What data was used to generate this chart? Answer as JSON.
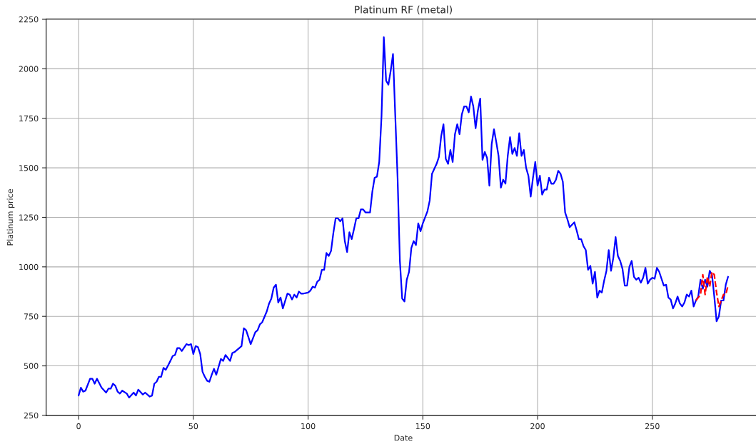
{
  "chart_data": {
    "type": "line",
    "title": "Platinum RF (metal)",
    "xlabel": "Date",
    "ylabel": "Platinum price",
    "xlim": [
      -14.15,
      297.15
    ],
    "xticks": [
      0,
      50,
      100,
      150,
      200,
      250
    ],
    "ylim": [
      249,
      2251
    ],
    "yticks": [
      250,
      500,
      750,
      1000,
      1250,
      1500,
      1750,
      2000,
      2250
    ],
    "grid": true,
    "marker": "none",
    "series": [
      {
        "color": "#0000ff",
        "line_style": "solid",
        "x": [
          0,
          1,
          2,
          3,
          5,
          6,
          7,
          8,
          10,
          12,
          13,
          14,
          15,
          16,
          17,
          18,
          19,
          21,
          22,
          24,
          25,
          26,
          28,
          29,
          31,
          32,
          33,
          34,
          35,
          36,
          37,
          38,
          40,
          41,
          42,
          43,
          44,
          45,
          47,
          48,
          49,
          50,
          51,
          52,
          53,
          54,
          55,
          56,
          57,
          58,
          59,
          60,
          62,
          63,
          64,
          66,
          67,
          68,
          69,
          71,
          72,
          73,
          75,
          77,
          78,
          79,
          80,
          82,
          83,
          84,
          85,
          86,
          87,
          88,
          89,
          91,
          92,
          93,
          94,
          95,
          96,
          97,
          98,
          100,
          101,
          102,
          103,
          104,
          105,
          106,
          107,
          108,
          109,
          110,
          111,
          112,
          113,
          114,
          115,
          116,
          117,
          118,
          119,
          120,
          121,
          122,
          123,
          124,
          125,
          127,
          128,
          129,
          130,
          131,
          132,
          133,
          134,
          135,
          136,
          137,
          138,
          139,
          140,
          141,
          142,
          143,
          144,
          145,
          146,
          147,
          148,
          149,
          150,
          152,
          153,
          154,
          156,
          157,
          158,
          159,
          160,
          161,
          162,
          163,
          164,
          165,
          166,
          167,
          168,
          169,
          170,
          171,
          172,
          173,
          174,
          175,
          176,
          177,
          178,
          179,
          180,
          181,
          182,
          183,
          184,
          185,
          186,
          187,
          188,
          189,
          190,
          191,
          192,
          193,
          194,
          195,
          196,
          197,
          198,
          199,
          200,
          201,
          202,
          203,
          204,
          205,
          206,
          207,
          208,
          209,
          210,
          211,
          212,
          213,
          214,
          216,
          217,
          218,
          219,
          220,
          221,
          222,
          223,
          224,
          225,
          226,
          227,
          228,
          229,
          230,
          231,
          232,
          233,
          234,
          235,
          236,
          237,
          238,
          239,
          240,
          241,
          242,
          243,
          244,
          245,
          246,
          247,
          248,
          249,
          250,
          251,
          252,
          253,
          254,
          255,
          256,
          257,
          258,
          259,
          260,
          261,
          262,
          263,
          264,
          265,
          266,
          267,
          268,
          269,
          270,
          271,
          272,
          273,
          274,
          275,
          276,
          277,
          278,
          279,
          280,
          281,
          282,
          283
        ],
        "values": [
          350,
          390,
          370,
          375,
          435,
          435,
          410,
          435,
          390,
          365,
          385,
          385,
          410,
          400,
          370,
          360,
          375,
          360,
          340,
          365,
          350,
          380,
          355,
          365,
          345,
          350,
          410,
          420,
          445,
          445,
          490,
          480,
          525,
          550,
          555,
          590,
          590,
          575,
          610,
          605,
          610,
          560,
          600,
          595,
          560,
          470,
          445,
          425,
          420,
          455,
          485,
          455,
          535,
          525,
          555,
          525,
          565,
          570,
          580,
          600,
          690,
          680,
          610,
          670,
          680,
          710,
          720,
          775,
          815,
          840,
          895,
          910,
          820,
          845,
          790,
          865,
          860,
          835,
          860,
          845,
          875,
          865,
          865,
          870,
          880,
          900,
          895,
          925,
          935,
          985,
          985,
          1070,
          1055,
          1080,
          1170,
          1245,
          1245,
          1230,
          1245,
          1130,
          1075,
          1175,
          1140,
          1190,
          1245,
          1245,
          1290,
          1290,
          1275,
          1275,
          1380,
          1450,
          1455,
          1530,
          1760,
          2160,
          1940,
          1920,
          1990,
          2075,
          1760,
          1450,
          1030,
          840,
          825,
          935,
          975,
          1095,
          1130,
          1110,
          1220,
          1180,
          1220,
          1280,
          1335,
          1470,
          1520,
          1555,
          1660,
          1720,
          1545,
          1520,
          1590,
          1530,
          1670,
          1720,
          1670,
          1770,
          1810,
          1810,
          1780,
          1860,
          1810,
          1700,
          1790,
          1850,
          1540,
          1580,
          1550,
          1410,
          1620,
          1695,
          1630,
          1560,
          1400,
          1440,
          1420,
          1560,
          1655,
          1570,
          1600,
          1560,
          1675,
          1560,
          1590,
          1500,
          1460,
          1355,
          1450,
          1530,
          1410,
          1460,
          1365,
          1390,
          1390,
          1450,
          1420,
          1420,
          1440,
          1485,
          1470,
          1430,
          1275,
          1240,
          1200,
          1225,
          1185,
          1140,
          1140,
          1105,
          1085,
          985,
          1005,
          915,
          975,
          845,
          880,
          870,
          930,
          980,
          1085,
          980,
          1045,
          1150,
          1055,
          1030,
          990,
          905,
          905,
          1000,
          1030,
          950,
          935,
          945,
          920,
          945,
          995,
          915,
          935,
          945,
          940,
          995,
          975,
          940,
          905,
          910,
          845,
          835,
          790,
          815,
          850,
          815,
          800,
          820,
          860,
          850,
          880,
          800,
          830,
          850,
          935,
          890,
          935,
          900,
          980,
          960,
          850,
          725,
          750,
          830,
          830,
          910,
          950
        ]
      },
      {
        "color": "#ff0000",
        "line_style": "dashed",
        "x": [
          269,
          270,
          271,
          272,
          273,
          274,
          275,
          276,
          277,
          278,
          279,
          280,
          281,
          282,
          283
        ],
        "values": [
          830,
          845,
          860,
          960,
          860,
          950,
          900,
          975,
          960,
          870,
          800,
          830,
          860,
          860,
          905
        ]
      }
    ]
  }
}
